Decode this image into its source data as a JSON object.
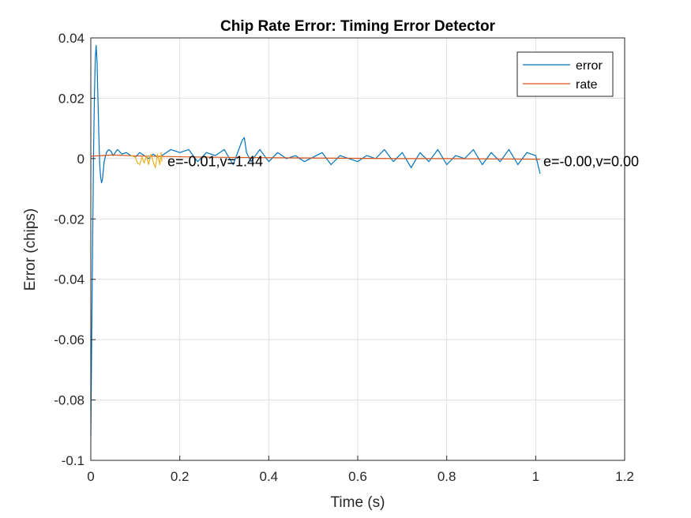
{
  "chart_data": {
    "type": "line",
    "title": "Chip Rate Error: Timing Error Detector",
    "xlabel": "Time (s)",
    "ylabel": "Error (chips)",
    "xlim": [
      0,
      1.2
    ],
    "ylim": [
      -0.1,
      0.04
    ],
    "xticks": [
      0,
      0.2,
      0.4,
      0.6,
      0.8,
      1.0,
      1.2
    ],
    "xtick_labels": [
      "0",
      "0.2",
      "0.4",
      "0.6",
      "0.8",
      "1",
      "1.2"
    ],
    "yticks": [
      -0.1,
      -0.08,
      -0.06,
      -0.04,
      -0.02,
      0,
      0.02,
      0.04
    ],
    "ytick_labels": [
      "-0.1",
      "-0.08",
      "-0.06",
      "-0.04",
      "-0.02",
      "0",
      "0.02",
      "0.04"
    ],
    "grid": true,
    "legend_position": "top-right",
    "series": [
      {
        "name": "error",
        "color": "#0072BD",
        "x": [
          0,
          0.002,
          0.004,
          0.006,
          0.008,
          0.01,
          0.012,
          0.014,
          0.016,
          0.018,
          0.02,
          0.022,
          0.024,
          0.026,
          0.028,
          0.03,
          0.035,
          0.04,
          0.045,
          0.05,
          0.055,
          0.06,
          0.07,
          0.08,
          0.09,
          0.1,
          0.11,
          0.12,
          0.13,
          0.14,
          0.15,
          0.16,
          0.18,
          0.2,
          0.22,
          0.24,
          0.26,
          0.28,
          0.3,
          0.32,
          0.34,
          0.345,
          0.35,
          0.36,
          0.38,
          0.4,
          0.42,
          0.44,
          0.46,
          0.48,
          0.5,
          0.52,
          0.54,
          0.56,
          0.58,
          0.6,
          0.62,
          0.64,
          0.66,
          0.68,
          0.7,
          0.72,
          0.74,
          0.76,
          0.78,
          0.8,
          0.82,
          0.84,
          0.86,
          0.88,
          0.9,
          0.92,
          0.94,
          0.96,
          0.98,
          1.0,
          1.01
        ],
        "y": [
          -0.092,
          -0.06,
          -0.03,
          0.0,
          0.02,
          0.033,
          0.0375,
          0.032,
          0.02,
          0.008,
          -0.002,
          -0.006,
          -0.008,
          -0.007,
          -0.004,
          -0.001,
          0.002,
          0.003,
          0.0025,
          0.001,
          0.002,
          0.003,
          0.0015,
          0.002,
          0.001,
          0.0005,
          0.002,
          0.001,
          0.0,
          0.0015,
          0.0005,
          0.001,
          0.003,
          0.002,
          0.003,
          -0.001,
          0.002,
          0.001,
          0.003,
          -0.002,
          0.006,
          0.007,
          0.002,
          -0.001,
          0.003,
          -0.001,
          0.002,
          0.0,
          0.001,
          -0.001,
          0.0005,
          0.002,
          -0.002,
          0.001,
          0.0,
          -0.001,
          0.001,
          0.0,
          0.003,
          -0.001,
          0.002,
          -0.003,
          0.002,
          -0.001,
          0.003,
          -0.002,
          0.001,
          0.0,
          0.003,
          -0.002,
          0.002,
          -0.001,
          0.003,
          -0.002,
          0.002,
          0.001,
          -0.005
        ]
      },
      {
        "name": "rate",
        "color": "#D95319",
        "x": [
          0,
          0.05,
          0.1,
          0.2,
          0.3,
          0.4,
          0.5,
          0.6,
          0.7,
          0.8,
          0.9,
          1.0,
          1.01
        ],
        "y": [
          0.0008,
          0.0012,
          0.0009,
          0.0006,
          0.0004,
          0.0003,
          0.0002,
          0.0001,
          0.0,
          0.0,
          -0.0001,
          -0.0002,
          -0.0002
        ]
      },
      {
        "color": "#EDB120",
        "x": [
          0.09,
          0.1,
          0.105,
          0.11,
          0.115,
          0.12,
          0.125,
          0.13,
          0.135,
          0.14,
          0.145,
          0.15,
          0.155,
          0.158,
          0.16
        ],
        "y": [
          0.001,
          0.0005,
          -0.0015,
          -0.002,
          0.0005,
          -0.0015,
          0.001,
          -0.002,
          0.0015,
          -0.001,
          -0.003,
          0.0015,
          -0.002,
          0.002,
          -0.001
        ]
      }
    ],
    "annotations": [
      {
        "text": "e=-0.01,v=1.44",
        "x": 0.165,
        "y": -0.001
      },
      {
        "text": "e=-0.00,v=0.00",
        "x": 1.01,
        "y": -0.001
      }
    ]
  }
}
